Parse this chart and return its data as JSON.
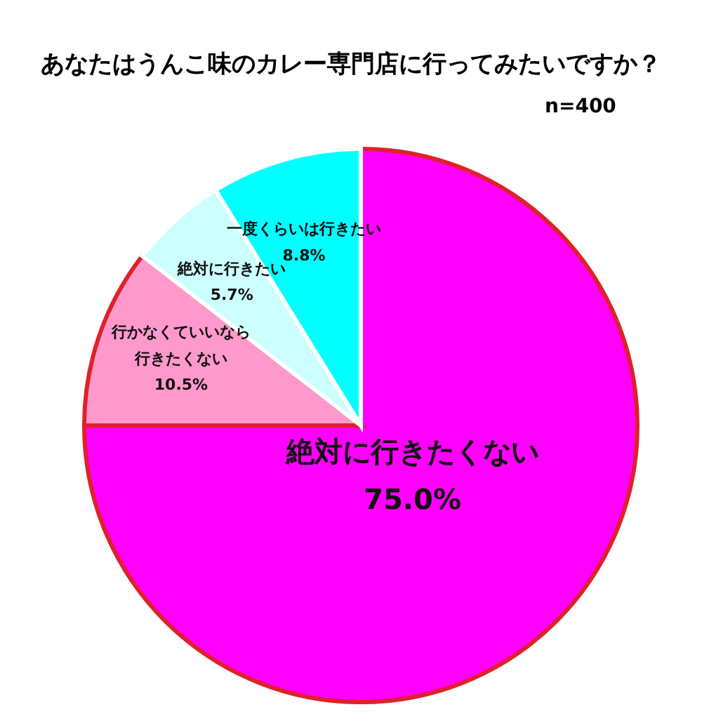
{
  "chart_data": {
    "type": "pie",
    "title": "あなたはうんこ味のカレー専門店に行ってみたいですか？",
    "annotations": [
      "n=400"
    ],
    "categories": [
      "絶対に行きたくない",
      "行かなくていいなら行きたくない",
      "絶対に行きたい",
      "一度くらいは行きたい"
    ],
    "values": [
      75.0,
      10.5,
      5.7,
      8.8
    ],
    "value_labels": [
      "75.0%",
      "10.5%",
      "5.7%",
      "8.8%"
    ],
    "colors": [
      "#ff00ff",
      "#ff99cc",
      "#ccffff",
      "#00ffff"
    ],
    "legend": false
  }
}
